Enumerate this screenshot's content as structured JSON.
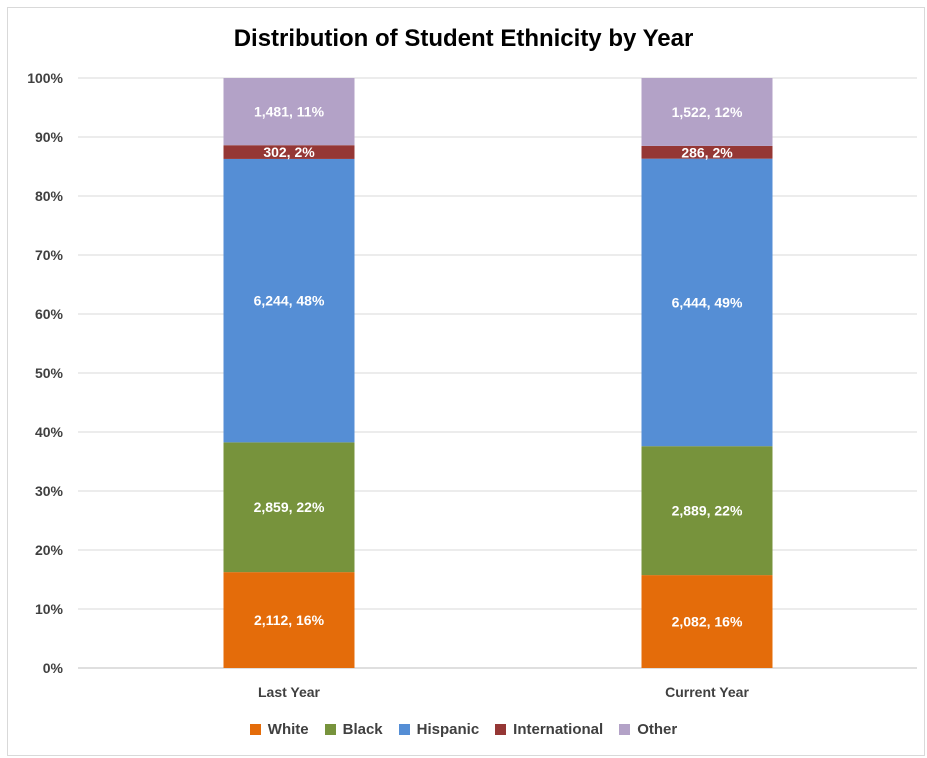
{
  "chart_data": {
    "type": "bar",
    "stacked": "percent",
    "title": "Distribution of Student Ethnicity by Year",
    "categories": [
      "Last Year",
      "Current Year"
    ],
    "ylim": [
      0,
      100
    ],
    "yticks": [
      "0%",
      "10%",
      "20%",
      "30%",
      "40%",
      "50%",
      "60%",
      "70%",
      "80%",
      "90%",
      "100%"
    ],
    "grid": true,
    "legend_position": "bottom",
    "series": [
      {
        "name": "White",
        "color": "#e46c0a",
        "values": [
          2112,
          2082
        ],
        "labels": [
          "2,112, 16%",
          "2,082, 16%"
        ]
      },
      {
        "name": "Black",
        "color": "#77933c",
        "values": [
          2859,
          2889
        ],
        "labels": [
          "2,859, 22%",
          "2,889, 22%"
        ]
      },
      {
        "name": "Hispanic",
        "color": "#558ed5",
        "values": [
          6244,
          6444
        ],
        "labels": [
          "6,244, 48%",
          "6,444, 49%"
        ]
      },
      {
        "name": "International",
        "color": "#953735",
        "values": [
          302,
          286
        ],
        "labels": [
          "302, 2%",
          "286, 2%"
        ]
      },
      {
        "name": "Other",
        "color": "#b3a2c7",
        "values": [
          1481,
          1522
        ],
        "labels": [
          "1,481, 11%",
          "1,522, 12%"
        ]
      }
    ]
  }
}
